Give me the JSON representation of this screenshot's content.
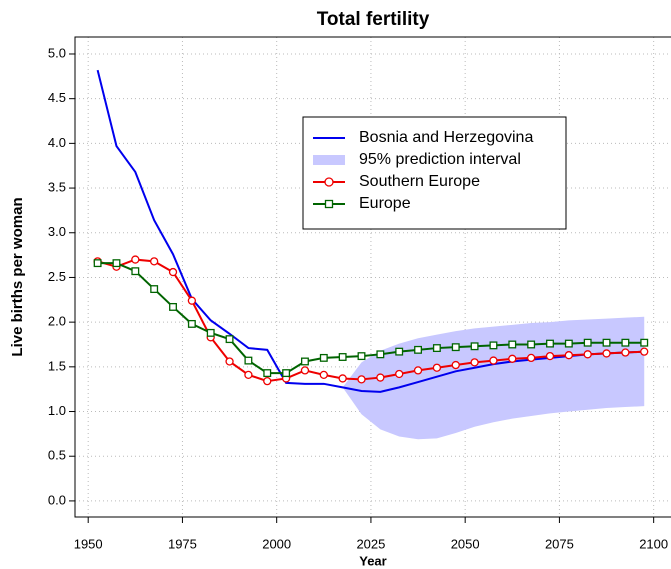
{
  "chart_data": {
    "type": "line",
    "title": "Total fertility",
    "xlabel": "Year",
    "ylabel": "Live births per woman",
    "x": [
      1952.5,
      1957.5,
      1962.5,
      1967.5,
      1972.5,
      1977.5,
      1982.5,
      1987.5,
      1992.5,
      1997.5,
      2002.5,
      2007.5,
      2012.5,
      2017.5,
      2022.5,
      2027.5,
      2032.5,
      2037.5,
      2042.5,
      2047.5,
      2052.5,
      2057.5,
      2062.5,
      2067.5,
      2072.5,
      2077.5,
      2082.5,
      2087.5,
      2092.5,
      2097.5
    ],
    "series": [
      {
        "name": "Bosnia and Herzegovina",
        "color": "#0000ee",
        "marker": "none",
        "values": [
          4.82,
          3.97,
          3.68,
          3.14,
          2.76,
          2.26,
          2.02,
          1.87,
          1.71,
          1.69,
          1.32,
          1.31,
          1.31,
          1.27,
          1.23,
          1.22,
          1.27,
          1.33,
          1.39,
          1.45,
          1.49,
          1.53,
          1.56,
          1.58,
          1.6,
          1.62,
          1.64,
          1.65,
          1.66,
          1.67
        ]
      },
      {
        "name": "Southern Europe",
        "color": "#ee0000",
        "marker": "circle",
        "values": [
          2.68,
          2.62,
          2.7,
          2.68,
          2.56,
          2.24,
          1.83,
          1.56,
          1.41,
          1.34,
          1.37,
          1.46,
          1.41,
          1.37,
          1.36,
          1.38,
          1.42,
          1.46,
          1.49,
          1.52,
          1.55,
          1.57,
          1.59,
          1.6,
          1.62,
          1.63,
          1.64,
          1.65,
          1.66,
          1.67
        ]
      },
      {
        "name": "Europe",
        "color": "#006400",
        "marker": "square",
        "values": [
          2.66,
          2.66,
          2.57,
          2.37,
          2.17,
          1.98,
          1.88,
          1.81,
          1.57,
          1.43,
          1.43,
          1.56,
          1.6,
          1.61,
          1.62,
          1.64,
          1.67,
          1.69,
          1.71,
          1.72,
          1.73,
          1.74,
          1.75,
          1.75,
          1.76,
          1.76,
          1.77,
          1.77,
          1.77,
          1.77
        ]
      }
    ],
    "band": {
      "name": "95% prediction interval",
      "color": "#c8c8ff",
      "x": [
        2017.5,
        2022.5,
        2027.5,
        2032.5,
        2037.5,
        2042.5,
        2047.5,
        2052.5,
        2057.5,
        2062.5,
        2067.5,
        2072.5,
        2077.5,
        2082.5,
        2087.5,
        2092.5,
        2097.5
      ],
      "lower": [
        1.27,
        0.97,
        0.8,
        0.72,
        0.69,
        0.7,
        0.76,
        0.83,
        0.88,
        0.92,
        0.95,
        0.98,
        1.0,
        1.02,
        1.04,
        1.05,
        1.06
      ],
      "upper": [
        1.27,
        1.55,
        1.68,
        1.76,
        1.82,
        1.86,
        1.9,
        1.93,
        1.95,
        1.97,
        1.99,
        2.0,
        2.02,
        2.03,
        2.04,
        2.05,
        2.06
      ]
    },
    "xlim": [
      1946.5,
      2104.6
    ],
    "ylim": [
      -0.18,
      5.19
    ],
    "xticks": [
      1950,
      1975,
      2000,
      2025,
      2050,
      2075,
      2100
    ],
    "yticks": [
      {
        "value": 0,
        "label": "0.0"
      },
      {
        "value": 0.5,
        "label": "0.5"
      },
      {
        "value": 1,
        "label": "1.0"
      },
      {
        "value": 1.5,
        "label": "1.5"
      },
      {
        "value": 2,
        "label": "2.0"
      },
      {
        "value": 2.5,
        "label": "2.5"
      },
      {
        "value": 3,
        "label": "3.0"
      },
      {
        "value": 3.5,
        "label": "3.5"
      },
      {
        "value": 4,
        "label": "4.0"
      },
      {
        "value": 4.5,
        "label": "4.5"
      },
      {
        "value": 5,
        "label": "5.0"
      }
    ],
    "grid": true
  }
}
